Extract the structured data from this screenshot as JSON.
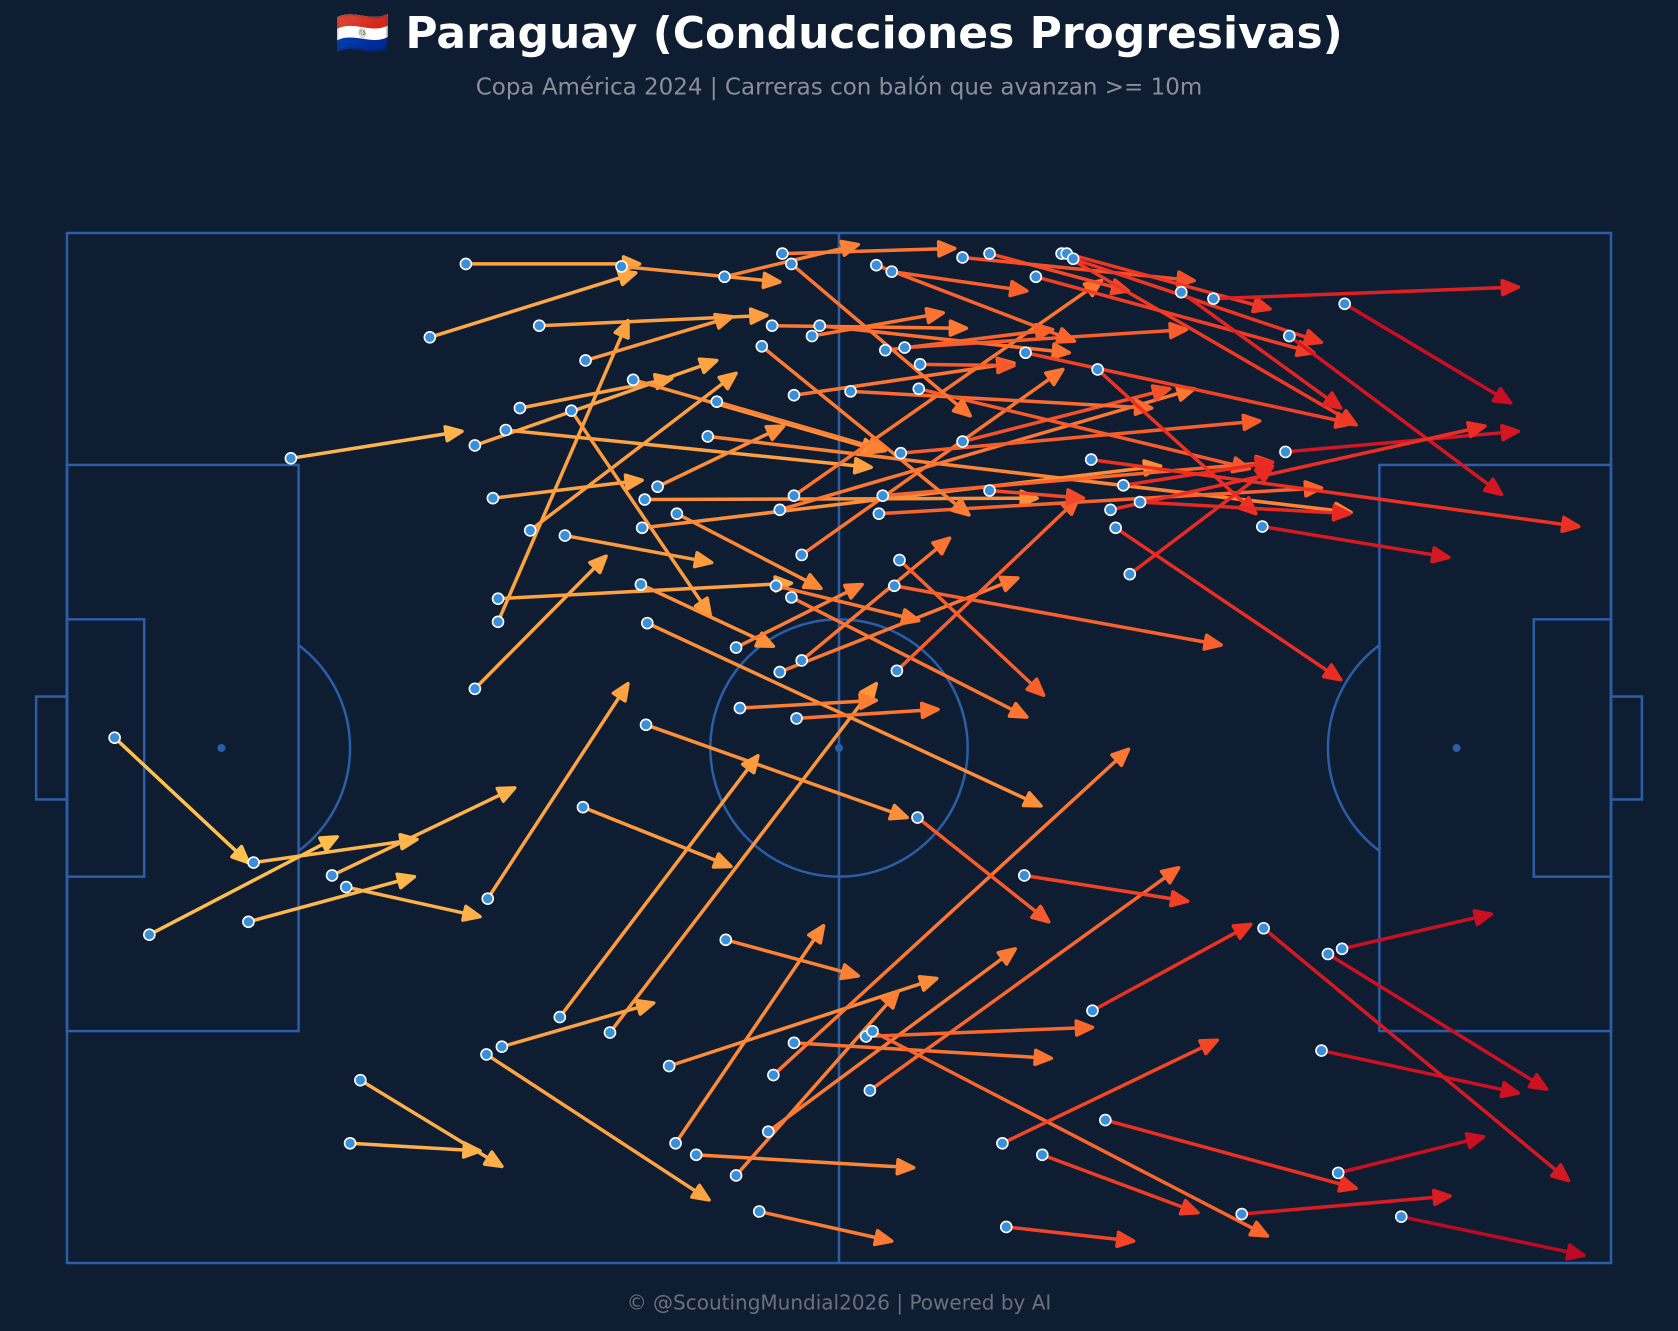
{
  "chart_data": {
    "type": "carries",
    "title": "🇵🇾 Paraguay (Conducciones Progresivas)",
    "subtitle": "Copa América 2024 | Carreras con balón que avanzan >= 10m",
    "source": "© @ScoutingMundial2026 | Powered by AI",
    "xlim": [
      0,
      120
    ],
    "ylim": [
      0,
      80
    ],
    "colors": [
      "#fec44f",
      "#feb24c",
      "#fd9a3c",
      "#fc6d2e",
      "#ec3023",
      "#c90d22",
      "#800026"
    ],
    "point_color": "#3a8fd9",
    "line_color": "#2b5ea7",
    "x": [
      31.0,
      28.2,
      17.4,
      3.7,
      14.5,
      6.4,
      20.6,
      21.7,
      14.1,
      32.7,
      31.7,
      33.5,
      33.5,
      36.0,
      33.1,
      38.7,
      31.7,
      34.1,
      35.2,
      39.2,
      40.3,
      36.7,
      43.1,
      44.0,
      45.9,
      49.8,
      44.9,
      44.7,
      47.4,
      44.6,
      45.1,
      45.0,
      40.1,
      38.3,
      42.2,
      33.8,
      32.6,
      22.8,
      22.0,
      51.2,
      46.8,
      47.3,
      48.9,
      52.0,
      53.8,
      54.5,
      54.9,
      56.5,
      62.1,
      62.6,
      62.4,
      72.7,
      75.8,
      73.0,
      79.7,
      80.7,
      91.3,
      103.7,
      98.8,
      97.5,
      98.0,
      99.1,
      93.0,
      74.4,
      66.1,
      56.7,
      52.3,
      55.4,
      57.1,
      52.0,
      56.3,
      55.1,
      64.5,
      64.3,
      64.7,
      57.1,
      55.4,
      56.5,
      63.4,
      63.1,
      64.8,
      69.6,
      56.5,
      60.9,
      66.2,
      50.5,
      54.0,
      54.8,
      57.9,
      58.5,
      63.6,
      65.1,
      66.3,
      74.5,
      80.1,
      55.6,
      51.1,
      56.3,
      64.1,
      62.9,
      71.7,
      69.6,
      77.3,
      77.7,
      78.2,
      75.3,
      86.6,
      89.1,
      99.3,
      95.0,
      94.7,
      92.9,
      81.5,
      81.1,
      83.4,
      82.1,
      82.6,
      79.6,
      71.7
    ],
    "y": [
      2.4,
      8.1,
      17.5,
      39.2,
      48.9,
      54.5,
      49.9,
      50.8,
      53.5,
      51.7,
      35.4,
      30.2,
      28.4,
      23.1,
      20.6,
      23.5,
      16.5,
      15.3,
      13.6,
      13.8,
      9.9,
      7.2,
      2.6,
      11.4,
      19.7,
      15.8,
      20.7,
      22.9,
      21.8,
      27.3,
      30.3,
      38.2,
      44.6,
      60.9,
      62.1,
      63.2,
      63.8,
      65.8,
      70.7,
      54.9,
      64.7,
      70.7,
      71.6,
      73.2,
      76.0,
      69.8,
      65.4,
      62.9,
      62.4,
      62.0,
      66.6,
      70.7,
      71.6,
      77.2,
      60.4,
      68.9,
      76.2,
      76.4,
      73.0,
      63.5,
      56.0,
      55.6,
      54.0,
      49.9,
      45.4,
      37.7,
      36.9,
      34.1,
      33.2,
      32.2,
      28.3,
      27.4,
      34.0,
      27.4,
      25.4,
      25.0,
      21.5,
      20.4,
      20.4,
      21.8,
      17.1,
      16.2,
      12.6,
      12.3,
      12.1,
      13.1,
      8.8,
      7.2,
      8.0,
      7.2,
      9.1,
      8.9,
      10.2,
      9.3,
      10.6,
      1.6,
      3.4,
      2.4,
      3.0,
      2.5,
      1.6,
      1.9,
      1.6,
      1.6,
      2.0,
      3.4,
      4.6,
      5.1,
      5.5,
      8.0,
      17.0,
      22.8,
      22.9,
      21.5,
      20.9,
      19.6,
      26.5,
      17.6,
      20.0
    ],
    "x_end": [
      44.5,
      44.2,
      30.7,
      14.1,
      27.2,
      21.0,
      34.8,
      32.1,
      27.0,
      43.6,
      41.9,
      43.6,
      56.3,
      52.0,
      44.7,
      50.1,
      50.5,
      62.5,
      47.0,
      50.0,
      51.7,
      54.4,
      55.4,
      63.1,
      55.7,
      99.8,
      75.4,
      85.0,
      58.6,
      54.9,
      75.7,
      65.3,
      51.6,
      53.7,
      62.9,
      45.6,
      49.9,
      33.8,
      32.1,
      61.5,
      67.6,
      58.8,
      65.8,
      64.6,
      64.1,
      73.7,
      82.5,
      76.5,
      79.7,
      93.3,
      86.4,
      89.4,
      87.9,
      82.9,
      92.0,
      100.2,
      107.5,
      117.9,
      110.1,
      112.8,
      115.0,
      110.7,
      116.7,
      87.1,
      76.3,
      67.7,
      62.9,
      73.9,
      68.6,
      61.8,
      74.6,
      66.2,
      78.6,
      89.7,
      75.9,
      77.4,
      87.6,
      80.4,
      93.7,
      97.5,
      92.7,
      85.7,
      73.6,
      84.3,
      91.9,
      63.6,
      70.1,
      69.9,
      68.1,
      77.9,
      76.6,
      87.0,
      73.6,
      99.9,
      92.4,
      69.0,
      61.5,
      70.2,
      74.6,
      78.3,
      82.5,
      87.6,
      100.2,
      93.5,
      97.5,
      96.9,
      99.0,
      112.8,
      112.2,
      111.5,
      112.8,
      107.4,
      99.0,
      110.2,
      99.7,
      93.7,
      93.7,
      117.5,
      79.0
    ],
    "y_end": [
      2.4,
      3.1,
      15.4,
      48.9,
      47.1,
      46.9,
      43.1,
      53.1,
      50.0,
      35.0,
      25.1,
      6.8,
      27.2,
      10.9,
      19.2,
      25.6,
      9.9,
      18.2,
      11.3,
      29.7,
      6.5,
      6.4,
      3.8,
      16.9,
      15.0,
      21.7,
      20.6,
      18.1,
      27.6,
      32.1,
      44.5,
      45.4,
      49.2,
      40.6,
      35.0,
      59.8,
      75.1,
      72.5,
      71.3,
      57.7,
      57.9,
      53.8,
      72.6,
      58.9,
      78.3,
      55.6,
      40.1,
      64.1,
      61.7,
      77.9,
      49.3,
      62.7,
      76.1,
      78.3,
      53.7,
      74.2,
      74.8,
      79.4,
      70.2,
      66.8,
      66.5,
      52.9,
      73.6,
      51.9,
      53.5,
      37.0,
      36.3,
      26.8,
      23.7,
      27.3,
      37.6,
      30.1,
      20.6,
      32.0,
      35.9,
      10.6,
      12.1,
      3.7,
      17.8,
      19.8,
      14.6,
      12.1,
      10.1,
      13.6,
      18.3,
      16.9,
      21.9,
      7.4,
      6.2,
      9.3,
      7.5,
      7.5,
      10.3,
      14.8,
      21.8,
      1.2,
      0.9,
      14.2,
      4.5,
      8.4,
      4.5,
      3.7,
      14.9,
      5.9,
      8.5,
      9.3,
      13.6,
      4.2,
      13.2,
      20.3,
      15.4,
      25.2,
      34.7,
      15.0,
      21.8,
      17.8,
      18.1,
      22.8,
      20.6
    ]
  }
}
